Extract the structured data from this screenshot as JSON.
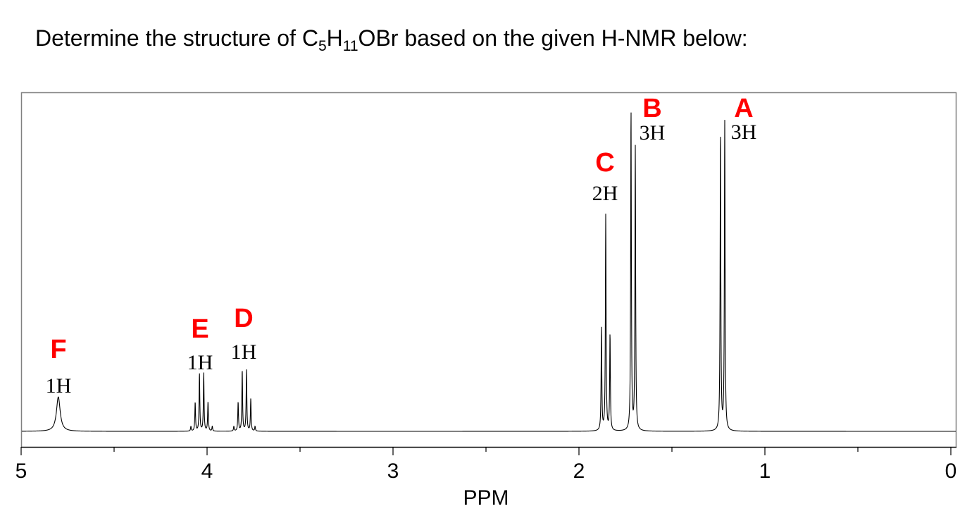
{
  "question": {
    "prefix": "Determine the structure of C",
    "sub1": "5",
    "mid": "H",
    "sub2": "11",
    "suffix": "OBr based on the given H-NMR below:"
  },
  "chart_data": {
    "type": "line",
    "title": "",
    "xlabel": "PPM",
    "ylabel": "",
    "xlim": [
      5,
      0
    ],
    "x_reversed": true,
    "xticks_major": [
      5,
      4,
      3,
      2,
      1,
      0
    ],
    "xtick_labels": [
      "5",
      "4",
      "3",
      "2",
      "1",
      "0"
    ],
    "xticks_minor": [
      4.5,
      3.5,
      2.5,
      1.5,
      0.5
    ],
    "grid": false,
    "line_color": "#000000",
    "label_color": "#ff0000",
    "signals": [
      {
        "letter": "F",
        "integration": "1H",
        "multiplicity": "singlet (broad)",
        "center_ppm": 4.8,
        "lines": [
          {
            "ppm": 4.8,
            "intensity": 0.107,
            "width": 0.012
          }
        ]
      },
      {
        "letter": "E",
        "integration": "1H",
        "multiplicity": "sextet",
        "center_ppm": 4.03,
        "lines": [
          {
            "ppm": 4.087,
            "intensity": 0.015
          },
          {
            "ppm": 4.064,
            "intensity": 0.09
          },
          {
            "ppm": 4.041,
            "intensity": 0.18
          },
          {
            "ppm": 4.018,
            "intensity": 0.18
          },
          {
            "ppm": 3.995,
            "intensity": 0.09
          },
          {
            "ppm": 3.972,
            "intensity": 0.015
          }
        ]
      },
      {
        "letter": "D",
        "integration": "1H",
        "multiplicity": "sextet",
        "center_ppm": 3.8,
        "lines": [
          {
            "ppm": 3.856,
            "intensity": 0.015
          },
          {
            "ppm": 3.833,
            "intensity": 0.09
          },
          {
            "ppm": 3.811,
            "intensity": 0.19
          },
          {
            "ppm": 3.788,
            "intensity": 0.19
          },
          {
            "ppm": 3.765,
            "intensity": 0.1
          },
          {
            "ppm": 3.742,
            "intensity": 0.015
          }
        ]
      },
      {
        "letter": "C",
        "integration": "2H",
        "multiplicity": "triplet",
        "center_ppm": 1.856,
        "lines": [
          {
            "ppm": 1.879,
            "intensity": 0.32
          },
          {
            "ppm": 1.856,
            "intensity": 0.67
          },
          {
            "ppm": 1.833,
            "intensity": 0.3
          }
        ]
      },
      {
        "letter": "B",
        "integration": "3H",
        "multiplicity": "doublet",
        "center_ppm": 1.709,
        "lines": [
          {
            "ppm": 1.72,
            "intensity": 1.0
          },
          {
            "ppm": 1.697,
            "intensity": 0.88
          }
        ]
      },
      {
        "letter": "A",
        "integration": "3H",
        "multiplicity": "doublet",
        "center_ppm": 1.228,
        "lines": [
          {
            "ppm": 1.239,
            "intensity": 0.93
          },
          {
            "ppm": 1.216,
            "intensity": 0.96
          }
        ]
      }
    ]
  }
}
